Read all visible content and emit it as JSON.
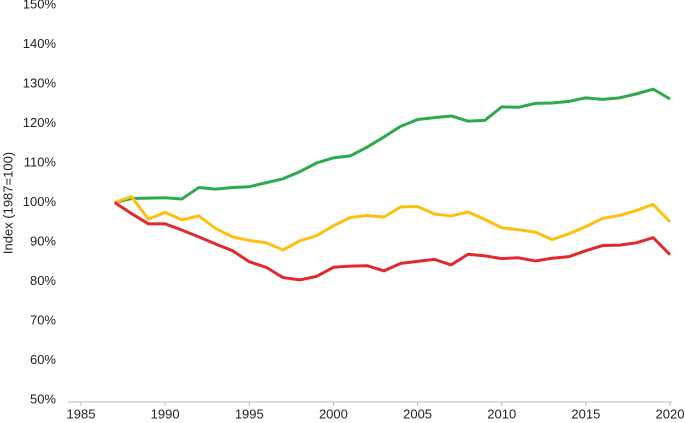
{
  "chart_data": {
    "type": "line",
    "y_label": "Index (1987=100)",
    "x": [
      1987,
      1988,
      1989,
      1990,
      1991,
      1992,
      1993,
      1994,
      1995,
      1996,
      1997,
      1998,
      1999,
      2000,
      2001,
      2002,
      2003,
      2004,
      2005,
      2006,
      2007,
      2008,
      2009,
      2010,
      2011,
      2012,
      2013,
      2014,
      2015,
      2016,
      2017,
      2018,
      2019,
      2020
    ],
    "series": [
      {
        "color": "#2eaa4a",
        "values": [
          100,
          101,
          101.1,
          101.2,
          100.9,
          103.8,
          103.4,
          103.8,
          104,
          105,
          106,
          107.8,
          110,
          111.3,
          111.8,
          114,
          116.6,
          119.3,
          121,
          121.5,
          121.9,
          120.6,
          120.8,
          124.2,
          124.1,
          125.1,
          125.2,
          125.6,
          126.5,
          126.1,
          126.5,
          127.5,
          128.7,
          126.2
        ]
      },
      {
        "color": "#fdc010",
        "values": [
          100,
          101.5,
          95.8,
          97.5,
          95.6,
          96.6,
          93.4,
          91.3,
          90.4,
          89.8,
          88,
          90.3,
          91.6,
          94.1,
          96.2,
          96.7,
          96.3,
          98.9,
          99,
          97.1,
          96.6,
          97.6,
          95.7,
          93.6,
          93.1,
          92.5,
          90.6,
          92.1,
          93.9,
          96,
          96.7,
          98,
          99.5,
          95.1
        ]
      },
      {
        "color": "#e02a2e",
        "values": [
          100,
          97.2,
          94.6,
          94.6,
          93,
          91.3,
          89.5,
          87.8,
          85,
          83.6,
          81,
          80.4,
          81.3,
          83.6,
          83.9,
          84,
          82.7,
          84.6,
          85.1,
          85.6,
          84.2,
          86.9,
          86.5,
          85.8,
          86,
          85.2,
          85.9,
          86.3,
          87.8,
          89.1,
          89.2,
          89.8,
          91.1,
          86.8
        ]
      }
    ],
    "xlim": [
      1985,
      2020
    ],
    "xticks": [
      1985,
      1990,
      1995,
      2000,
      2005,
      2010,
      2015,
      2020
    ],
    "ylim": [
      50,
      150
    ],
    "yticks": [
      {
        "value": 50,
        "label": "50%"
      },
      {
        "value": 60,
        "label": "60%"
      },
      {
        "value": 70,
        "label": "70%"
      },
      {
        "value": 80,
        "label": "80%"
      },
      {
        "value": 90,
        "label": "90%"
      },
      {
        "value": 100,
        "label": "100%"
      },
      {
        "value": 110,
        "label": "110%"
      },
      {
        "value": 120,
        "label": "120%"
      },
      {
        "value": 130,
        "label": "130%"
      },
      {
        "value": 140,
        "label": "140%"
      },
      {
        "value": 150,
        "label": "150%"
      }
    ],
    "grid": false
  }
}
